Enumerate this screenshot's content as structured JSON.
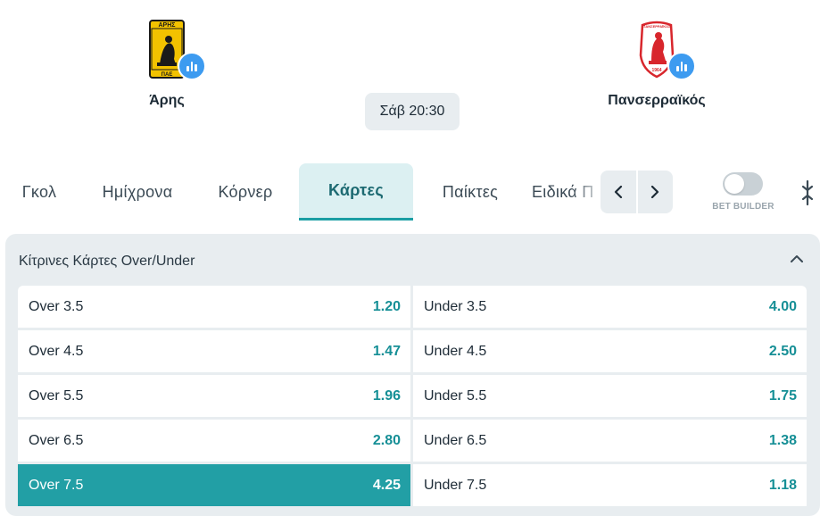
{
  "match": {
    "home": {
      "name": "Άρης",
      "crest_text_top": "ΑΡΗΣ",
      "crest_text_bottom": "ΠΑΕ",
      "crest_colors": [
        "#f2c200",
        "#1a1a1a"
      ]
    },
    "away": {
      "name": "Πανσερραϊκός",
      "crest_text_top": "ΠΑΝΣΕΡΡΑΪΚΟΣ",
      "crest_text_bottom": "1964",
      "crest_colors": [
        "#d8262c",
        "#ffffff"
      ]
    },
    "kickoff": "Σάβ 20:30"
  },
  "tabs": [
    {
      "label": "Γκολ",
      "active": false
    },
    {
      "label": "Ημίχρονα",
      "active": false
    },
    {
      "label": "Κόρνερ",
      "active": false
    },
    {
      "label": "Κάρτες",
      "active": true
    },
    {
      "label": "Παίκτες",
      "active": false
    },
    {
      "label": "Ειδικά Π",
      "active": false
    }
  ],
  "bet_builder": {
    "label": "BET BUILDER",
    "enabled": false
  },
  "market": {
    "title": "Κίτρινες Κάρτες Over/Under",
    "expanded": true,
    "rows": [
      {
        "over": {
          "label": "Over 3.5",
          "odd": "1.20",
          "selected": false
        },
        "under": {
          "label": "Under 3.5",
          "odd": "4.00",
          "selected": false
        }
      },
      {
        "over": {
          "label": "Over 4.5",
          "odd": "1.47",
          "selected": false
        },
        "under": {
          "label": "Under 4.5",
          "odd": "2.50",
          "selected": false
        }
      },
      {
        "over": {
          "label": "Over 5.5",
          "odd": "1.96",
          "selected": false
        },
        "under": {
          "label": "Under 5.5",
          "odd": "1.75",
          "selected": false
        }
      },
      {
        "over": {
          "label": "Over 6.5",
          "odd": "2.80",
          "selected": false
        },
        "under": {
          "label": "Under 6.5",
          "odd": "1.38",
          "selected": false
        }
      },
      {
        "over": {
          "label": "Over 7.5",
          "odd": "4.25",
          "selected": true
        },
        "under": {
          "label": "Under 7.5",
          "odd": "1.18",
          "selected": false
        }
      }
    ]
  },
  "icons": {
    "stats": "bar-chart-icon",
    "prev": "chevron-left-icon",
    "next": "chevron-right-icon",
    "collapse": "chevron-up-icon",
    "drag": "drag-handle-icon"
  },
  "colors": {
    "accent": "#229fa5",
    "odd_text": "#168f96",
    "active_tab_bg": "#dcf0f2",
    "panel_bg": "#e8edf0",
    "stats_button": "#3d9bf0"
  }
}
